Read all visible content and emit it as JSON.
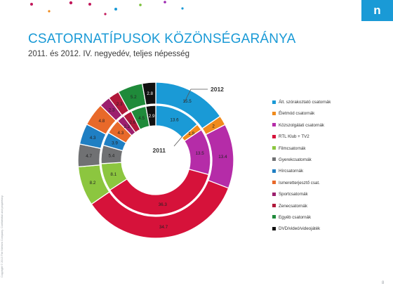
{
  "slide": {
    "title": "CSATORNATÍPUSOK KÖZÖNSÉGARÁNYA",
    "subtitle": "2011. és 2012. IV. negyedév, teljes népesség",
    "brand_letter": "n",
    "page_number": "8",
    "side_note": "Copyright © 2013 The Nielsen Company. Confidential and proprietary."
  },
  "colors": {
    "title": "#1a9ad6",
    "brand": "#1a9ad6",
    "dot_colors": [
      "#c2185b",
      "#1a9ad6",
      "#7bbf3a",
      "#9c27b0",
      "#f08a1c"
    ]
  },
  "chart_data": {
    "type": "donut",
    "categories": [
      "Ált. szórakoztató csatornák",
      "Életmód csatornák",
      "Közszolgálati csatornák",
      "RTL Klub + TV2",
      "Filmcsatornák",
      "Gyerekcsatornák",
      "Hírcsatornák",
      "Ismeretterjesztő csat.",
      "Sportcsatornák",
      "Zenecsatornák",
      "Egyéb csatornák",
      "DVD/videó/videojáték"
    ],
    "colors": [
      "#1a9ad6",
      "#f08a1c",
      "#b52ca8",
      "#d6123a",
      "#8cc63f",
      "#707173",
      "#1f7fc3",
      "#e8692a",
      "#9c1f6e",
      "#b0183a",
      "#1f8a3a",
      "#111111"
    ],
    "series": [
      {
        "name": "2012",
        "values": [
          15.5,
          2.0,
          13.4,
          34.7,
          8.2,
          4.7,
          4.3,
          4.8,
          2.3,
          2.3,
          5.2,
          2.8
        ]
      },
      {
        "name": "2011",
        "values": [
          13.6,
          1.9,
          13.5,
          36.3,
          8.1,
          5.4,
          3.9,
          4.3,
          2.2,
          2.6,
          4.5,
          2.9
        ]
      }
    ]
  }
}
